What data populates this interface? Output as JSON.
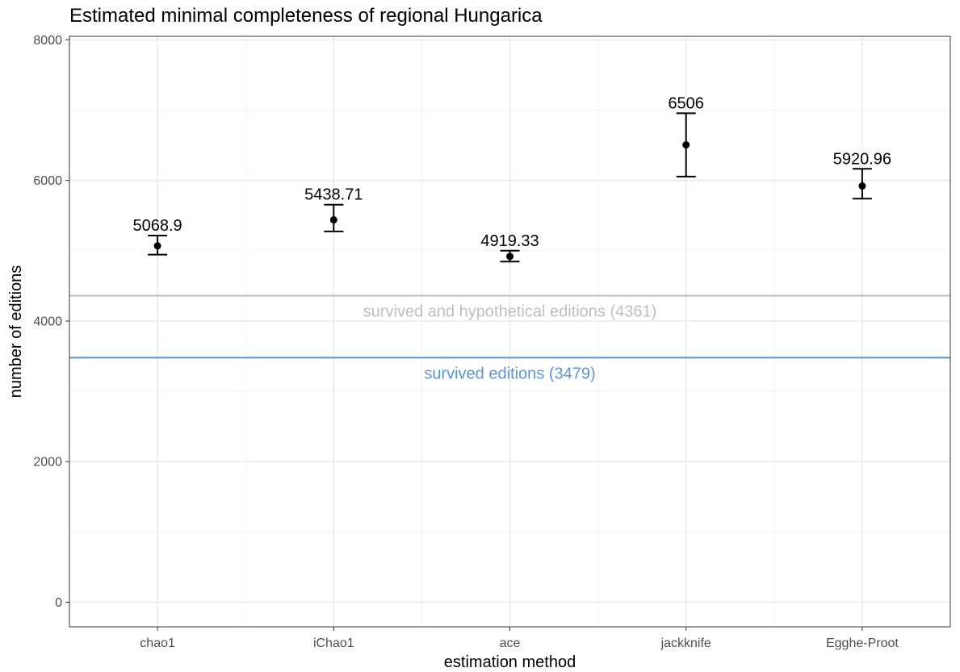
{
  "chart_data": {
    "type": "errorbar",
    "title": "Estimated minimal completeness of regional Hungarica",
    "xlabel": "estimation method",
    "ylabel": "number of editions",
    "ylim": [
      -350,
      8050
    ],
    "yticks": [
      0,
      2000,
      4000,
      6000,
      8000
    ],
    "ytick_labels": [
      "0",
      "2000",
      "4000",
      "6000",
      "8000"
    ],
    "grid": true,
    "categories": [
      "chao1",
      "iChao1",
      "ace",
      "jackknife",
      "Egghe-Proot"
    ],
    "points": [
      {
        "method": "chao1",
        "value": 5068.9,
        "label": "5068.9",
        "lower": 4945,
        "upper": 5215
      },
      {
        "method": "iChao1",
        "value": 5438.71,
        "label": "5438.71",
        "lower": 5275,
        "upper": 5655
      },
      {
        "method": "ace",
        "value": 4919.33,
        "label": "4919.33",
        "lower": 4845,
        "upper": 5000
      },
      {
        "method": "jackknife",
        "value": 6506,
        "label": "6506",
        "lower": 6055,
        "upper": 6955
      },
      {
        "method": "Egghe-Proot",
        "value": 5920.96,
        "label": "5920.96",
        "lower": 5740,
        "upper": 6165
      }
    ],
    "reference_lines": [
      {
        "name": "hypothetical",
        "value": 4361,
        "label": "survived and hypothetical editions (4361)",
        "color": "#bebebe"
      },
      {
        "name": "survived",
        "value": 3479,
        "label": "survived editions (3479)",
        "color": "#5e91d6"
      }
    ]
  }
}
